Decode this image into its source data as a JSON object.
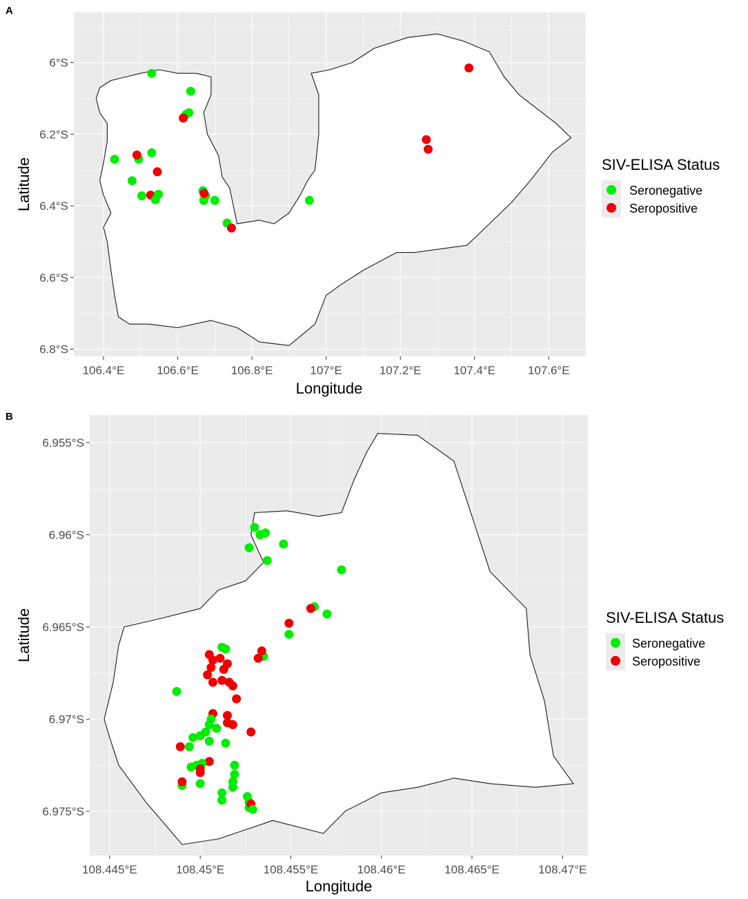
{
  "chart_data": [
    {
      "type": "scatter",
      "panel_label": "A",
      "xlabel": "Longitude",
      "ylabel": "Latitude",
      "xlim": [
        106.32,
        107.7
      ],
      "ylim": [
        -6.82,
        -5.86
      ],
      "x_ticks": [
        {
          "value": 106.4,
          "label": "106.4°E"
        },
        {
          "value": 106.6,
          "label": "106.6°E"
        },
        {
          "value": 106.8,
          "label": "106.8°E"
        },
        {
          "value": 107.0,
          "label": "107°E"
        },
        {
          "value": 107.2,
          "label": "107.2°E"
        },
        {
          "value": 107.4,
          "label": "107.4°E"
        },
        {
          "value": 107.6,
          "label": "107.6°E"
        }
      ],
      "y_ticks": [
        {
          "value": -6.0,
          "label": "6°S"
        },
        {
          "value": -6.2,
          "label": "6.2°S"
        },
        {
          "value": -6.4,
          "label": "6.4°S"
        },
        {
          "value": -6.6,
          "label": "6.6°S"
        },
        {
          "value": -6.8,
          "label": "6.8°S"
        }
      ],
      "grid": true,
      "legend": {
        "title": "SIV-ELISA Status",
        "placement": "right",
        "items": [
          {
            "label": "Seronegative",
            "color": "#00ee00"
          },
          {
            "label": "Seropositive",
            "color": "#ee0000"
          }
        ]
      },
      "boundary": [
        [
          106.39,
          -6.07
        ],
        [
          106.42,
          -6.05
        ],
        [
          106.46,
          -6.04
        ],
        [
          106.5,
          -6.03
        ],
        [
          106.55,
          -6.02
        ],
        [
          106.6,
          -6.03
        ],
        [
          106.65,
          -6.03
        ],
        [
          106.69,
          -6.04
        ],
        [
          106.69,
          -6.09
        ],
        [
          106.67,
          -6.14
        ],
        [
          106.68,
          -6.2
        ],
        [
          106.71,
          -6.26
        ],
        [
          106.72,
          -6.32
        ],
        [
          106.74,
          -6.35
        ],
        [
          106.76,
          -6.45
        ],
        [
          106.82,
          -6.44
        ],
        [
          106.86,
          -6.45
        ],
        [
          106.9,
          -6.42
        ],
        [
          106.93,
          -6.37
        ],
        [
          106.95,
          -6.33
        ],
        [
          106.97,
          -6.3
        ],
        [
          106.98,
          -6.2
        ],
        [
          106.98,
          -6.09
        ],
        [
          106.96,
          -6.03
        ],
        [
          107.01,
          -6.02
        ],
        [
          107.07,
          -6.0
        ],
        [
          107.13,
          -5.96
        ],
        [
          107.22,
          -5.93
        ],
        [
          107.3,
          -5.92
        ],
        [
          107.37,
          -5.94
        ],
        [
          107.44,
          -5.97
        ],
        [
          107.48,
          -6.04
        ],
        [
          107.52,
          -6.09
        ],
        [
          107.57,
          -6.13
        ],
        [
          107.62,
          -6.17
        ],
        [
          107.66,
          -6.21
        ],
        [
          107.61,
          -6.25
        ],
        [
          107.58,
          -6.29
        ],
        [
          107.55,
          -6.33
        ],
        [
          107.5,
          -6.39
        ],
        [
          107.44,
          -6.45
        ],
        [
          107.38,
          -6.51
        ],
        [
          107.31,
          -6.52
        ],
        [
          107.24,
          -6.53
        ],
        [
          107.19,
          -6.53
        ],
        [
          107.1,
          -6.58
        ],
        [
          107.04,
          -6.62
        ],
        [
          107.0,
          -6.65
        ],
        [
          106.97,
          -6.73
        ],
        [
          106.9,
          -6.79
        ],
        [
          106.82,
          -6.78
        ],
        [
          106.76,
          -6.74
        ],
        [
          106.69,
          -6.72
        ],
        [
          106.6,
          -6.74
        ],
        [
          106.52,
          -6.73
        ],
        [
          106.47,
          -6.73
        ],
        [
          106.44,
          -6.71
        ],
        [
          106.43,
          -6.65
        ],
        [
          106.42,
          -6.58
        ],
        [
          106.41,
          -6.5
        ],
        [
          106.4,
          -6.46
        ],
        [
          106.42,
          -6.42
        ],
        [
          106.4,
          -6.37
        ],
        [
          106.39,
          -6.33
        ],
        [
          106.4,
          -6.28
        ],
        [
          106.41,
          -6.22
        ],
        [
          106.41,
          -6.17
        ],
        [
          106.39,
          -6.14
        ],
        [
          106.38,
          -6.1
        ]
      ],
      "points": [
        {
          "lon": 106.53,
          "lat": -6.03,
          "status": "Seronegative"
        },
        {
          "lon": 106.635,
          "lat": -6.08,
          "status": "Seronegative"
        },
        {
          "lon": 106.63,
          "lat": -6.14,
          "status": "Seronegative"
        },
        {
          "lon": 106.622,
          "lat": -6.145,
          "status": "Seronegative"
        },
        {
          "lon": 106.615,
          "lat": -6.155,
          "status": "Seropositive"
        },
        {
          "lon": 106.43,
          "lat": -6.27,
          "status": "Seronegative"
        },
        {
          "lon": 106.495,
          "lat": -6.27,
          "status": "Seronegative"
        },
        {
          "lon": 106.49,
          "lat": -6.258,
          "status": "Seropositive"
        },
        {
          "lon": 106.53,
          "lat": -6.252,
          "status": "Seronegative"
        },
        {
          "lon": 106.545,
          "lat": -6.305,
          "status": "Seropositive"
        },
        {
          "lon": 106.477,
          "lat": -6.33,
          "status": "Seronegative"
        },
        {
          "lon": 106.503,
          "lat": -6.372,
          "status": "Seronegative"
        },
        {
          "lon": 106.527,
          "lat": -6.37,
          "status": "Seropositive"
        },
        {
          "lon": 106.54,
          "lat": -6.383,
          "status": "Seronegative"
        },
        {
          "lon": 106.548,
          "lat": -6.368,
          "status": "Seronegative"
        },
        {
          "lon": 106.668,
          "lat": -6.358,
          "status": "Seronegative"
        },
        {
          "lon": 106.675,
          "lat": -6.372,
          "status": "Seronegative"
        },
        {
          "lon": 106.67,
          "lat": -6.385,
          "status": "Seronegative"
        },
        {
          "lon": 106.671,
          "lat": -6.365,
          "status": "Seropositive"
        },
        {
          "lon": 106.7,
          "lat": -6.385,
          "status": "Seronegative"
        },
        {
          "lon": 106.733,
          "lat": -6.448,
          "status": "Seronegative"
        },
        {
          "lon": 106.745,
          "lat": -6.462,
          "status": "Seropositive"
        },
        {
          "lon": 106.955,
          "lat": -6.385,
          "status": "Seronegative"
        },
        {
          "lon": 107.27,
          "lat": -6.215,
          "status": "Seropositive"
        },
        {
          "lon": 107.275,
          "lat": -6.242,
          "status": "Seropositive"
        },
        {
          "lon": 107.385,
          "lat": -6.015,
          "status": "Seropositive"
        }
      ]
    },
    {
      "type": "scatter",
      "panel_label": "B",
      "xlabel": "Longitude",
      "ylabel": "Latitude",
      "xlim": [
        108.4439,
        108.4714
      ],
      "ylim": [
        -6.9774,
        -6.9535
      ],
      "x_ticks": [
        {
          "value": 108.445,
          "label": "108.445°E"
        },
        {
          "value": 108.45,
          "label": "108.45°E"
        },
        {
          "value": 108.455,
          "label": "108.455°E"
        },
        {
          "value": 108.46,
          "label": "108.46°E"
        },
        {
          "value": 108.465,
          "label": "108.465°E"
        },
        {
          "value": 108.47,
          "label": "108.47°E"
        }
      ],
      "y_ticks": [
        {
          "value": -6.955,
          "label": "6.955°S"
        },
        {
          "value": -6.96,
          "label": "6.96°S"
        },
        {
          "value": -6.965,
          "label": "6.965°S"
        },
        {
          "value": -6.97,
          "label": "6.97°S"
        },
        {
          "value": -6.975,
          "label": "6.975°S"
        }
      ],
      "grid": true,
      "legend": {
        "title": "SIV-ELISA Status",
        "placement": "right",
        "items": [
          {
            "label": "Seronegative",
            "color": "#00ee00"
          },
          {
            "label": "Seropositive",
            "color": "#ee0000"
          }
        ]
      },
      "boundary": [
        [
          108.4598,
          -6.9545
        ],
        [
          108.462,
          -6.9546
        ],
        [
          108.464,
          -6.956
        ],
        [
          108.465,
          -6.959
        ],
        [
          108.466,
          -6.962
        ],
        [
          108.468,
          -6.964
        ],
        [
          108.4682,
          -6.9665
        ],
        [
          108.469,
          -6.969
        ],
        [
          108.4695,
          -6.972
        ],
        [
          108.4706,
          -6.9735
        ],
        [
          108.4685,
          -6.9737
        ],
        [
          108.466,
          -6.9735
        ],
        [
          108.464,
          -6.9732
        ],
        [
          108.462,
          -6.9737
        ],
        [
          108.46,
          -6.974
        ],
        [
          108.458,
          -6.975
        ],
        [
          108.4568,
          -6.9762
        ],
        [
          108.454,
          -6.9755
        ],
        [
          108.451,
          -6.9765
        ],
        [
          108.449,
          -6.9768
        ],
        [
          108.447,
          -6.9745
        ],
        [
          108.4455,
          -6.9725
        ],
        [
          108.445,
          -6.971
        ],
        [
          108.4447,
          -6.97
        ],
        [
          108.4452,
          -6.968
        ],
        [
          108.4455,
          -6.966
        ],
        [
          108.4458,
          -6.965
        ],
        [
          108.448,
          -6.9645
        ],
        [
          108.45,
          -6.964
        ],
        [
          108.451,
          -6.963
        ],
        [
          108.4525,
          -6.9625
        ],
        [
          108.4535,
          -6.9615
        ],
        [
          108.4528,
          -6.96
        ],
        [
          108.453,
          -6.9588
        ],
        [
          108.4548,
          -6.9587
        ],
        [
          108.4565,
          -6.959
        ],
        [
          108.4578,
          -6.9588
        ],
        [
          108.4585,
          -6.957
        ],
        [
          108.4592,
          -6.9555
        ]
      ],
      "points": [
        {
          "lon": 108.453,
          "lat": -6.9596,
          "status": "Seronegative"
        },
        {
          "lon": 108.4533,
          "lat": -6.96,
          "status": "Seronegative"
        },
        {
          "lon": 108.4536,
          "lat": -6.9599,
          "status": "Seronegative"
        },
        {
          "lon": 108.4527,
          "lat": -6.9607,
          "status": "Seronegative"
        },
        {
          "lon": 108.4546,
          "lat": -6.9605,
          "status": "Seronegative"
        },
        {
          "lon": 108.4537,
          "lat": -6.9614,
          "status": "Seronegative"
        },
        {
          "lon": 108.4578,
          "lat": -6.9619,
          "status": "Seronegative"
        },
        {
          "lon": 108.4563,
          "lat": -6.9639,
          "status": "Seronegative"
        },
        {
          "lon": 108.457,
          "lat": -6.9643,
          "status": "Seronegative"
        },
        {
          "lon": 108.4561,
          "lat": -6.964,
          "status": "Seropositive"
        },
        {
          "lon": 108.4549,
          "lat": -6.9648,
          "status": "Seropositive"
        },
        {
          "lon": 108.4549,
          "lat": -6.9654,
          "status": "Seronegative"
        },
        {
          "lon": 108.4535,
          "lat": -6.9666,
          "status": "Seronegative"
        },
        {
          "lon": 108.4534,
          "lat": -6.9663,
          "status": "Seropositive"
        },
        {
          "lon": 108.4532,
          "lat": -6.9667,
          "status": "Seropositive"
        },
        {
          "lon": 108.4512,
          "lat": -6.9661,
          "status": "Seronegative"
        },
        {
          "lon": 108.4514,
          "lat": -6.9662,
          "status": "Seronegative"
        },
        {
          "lon": 108.4505,
          "lat": -6.9665,
          "status": "Seropositive"
        },
        {
          "lon": 108.4507,
          "lat": -6.9668,
          "status": "Seropositive"
        },
        {
          "lon": 108.4511,
          "lat": -6.9667,
          "status": "Seropositive"
        },
        {
          "lon": 108.4515,
          "lat": -6.967,
          "status": "Seropositive"
        },
        {
          "lon": 108.4506,
          "lat": -6.9672,
          "status": "Seropositive"
        },
        {
          "lon": 108.4513,
          "lat": -6.9673,
          "status": "Seropositive"
        },
        {
          "lon": 108.4504,
          "lat": -6.9676,
          "status": "Seropositive"
        },
        {
          "lon": 108.4507,
          "lat": -6.968,
          "status": "Seropositive"
        },
        {
          "lon": 108.4512,
          "lat": -6.9679,
          "status": "Seropositive"
        },
        {
          "lon": 108.4516,
          "lat": -6.968,
          "status": "Seropositive"
        },
        {
          "lon": 108.4518,
          "lat": -6.9682,
          "status": "Seropositive"
        },
        {
          "lon": 108.452,
          "lat": -6.9689,
          "status": "Seropositive"
        },
        {
          "lon": 108.4487,
          "lat": -6.9685,
          "status": "Seronegative"
        },
        {
          "lon": 108.4507,
          "lat": -6.9697,
          "status": "Seropositive"
        },
        {
          "lon": 108.4515,
          "lat": -6.9698,
          "status": "Seropositive"
        },
        {
          "lon": 108.4515,
          "lat": -6.9702,
          "status": "Seropositive"
        },
        {
          "lon": 108.4518,
          "lat": -6.9703,
          "status": "Seropositive"
        },
        {
          "lon": 108.4506,
          "lat": -6.97,
          "status": "Seronegative"
        },
        {
          "lon": 108.4505,
          "lat": -6.9703,
          "status": "Seronegative"
        },
        {
          "lon": 108.4509,
          "lat": -6.9705,
          "status": "Seronegative"
        },
        {
          "lon": 108.4503,
          "lat": -6.9707,
          "status": "Seronegative"
        },
        {
          "lon": 108.45,
          "lat": -6.9709,
          "status": "Seronegative"
        },
        {
          "lon": 108.4496,
          "lat": -6.971,
          "status": "Seronegative"
        },
        {
          "lon": 108.4505,
          "lat": -6.9712,
          "status": "Seronegative"
        },
        {
          "lon": 108.4514,
          "lat": -6.9713,
          "status": "Seronegative"
        },
        {
          "lon": 108.4494,
          "lat": -6.9715,
          "status": "Seronegative"
        },
        {
          "lon": 108.4489,
          "lat": -6.9715,
          "status": "Seropositive"
        },
        {
          "lon": 108.4528,
          "lat": -6.9707,
          "status": "Seropositive"
        },
        {
          "lon": 108.4505,
          "lat": -6.9723,
          "status": "Seropositive"
        },
        {
          "lon": 108.4498,
          "lat": -6.9725,
          "status": "Seronegative"
        },
        {
          "lon": 108.4501,
          "lat": -6.9724,
          "status": "Seronegative"
        },
        {
          "lon": 108.4495,
          "lat": -6.9726,
          "status": "Seronegative"
        },
        {
          "lon": 108.45,
          "lat": -6.9727,
          "status": "Seropositive"
        },
        {
          "lon": 108.45,
          "lat": -6.9729,
          "status": "Seropositive"
        },
        {
          "lon": 108.4519,
          "lat": -6.9725,
          "status": "Seronegative"
        },
        {
          "lon": 108.4519,
          "lat": -6.973,
          "status": "Seronegative"
        },
        {
          "lon": 108.4518,
          "lat": -6.9734,
          "status": "Seronegative"
        },
        {
          "lon": 108.4518,
          "lat": -6.9737,
          "status": "Seronegative"
        },
        {
          "lon": 108.449,
          "lat": -6.9736,
          "status": "Seronegative"
        },
        {
          "lon": 108.45,
          "lat": -6.9735,
          "status": "Seronegative"
        },
        {
          "lon": 108.449,
          "lat": -6.9734,
          "status": "Seropositive"
        },
        {
          "lon": 108.4512,
          "lat": -6.974,
          "status": "Seronegative"
        },
        {
          "lon": 108.4512,
          "lat": -6.9744,
          "status": "Seronegative"
        },
        {
          "lon": 108.4526,
          "lat": -6.9742,
          "status": "Seronegative"
        },
        {
          "lon": 108.4527,
          "lat": -6.9745,
          "status": "Seronegative"
        },
        {
          "lon": 108.4527,
          "lat": -6.9748,
          "status": "Seronegative"
        },
        {
          "lon": 108.4528,
          "lat": -6.9746,
          "status": "Seropositive"
        },
        {
          "lon": 108.4529,
          "lat": -6.9749,
          "status": "Seronegative"
        }
      ]
    }
  ]
}
